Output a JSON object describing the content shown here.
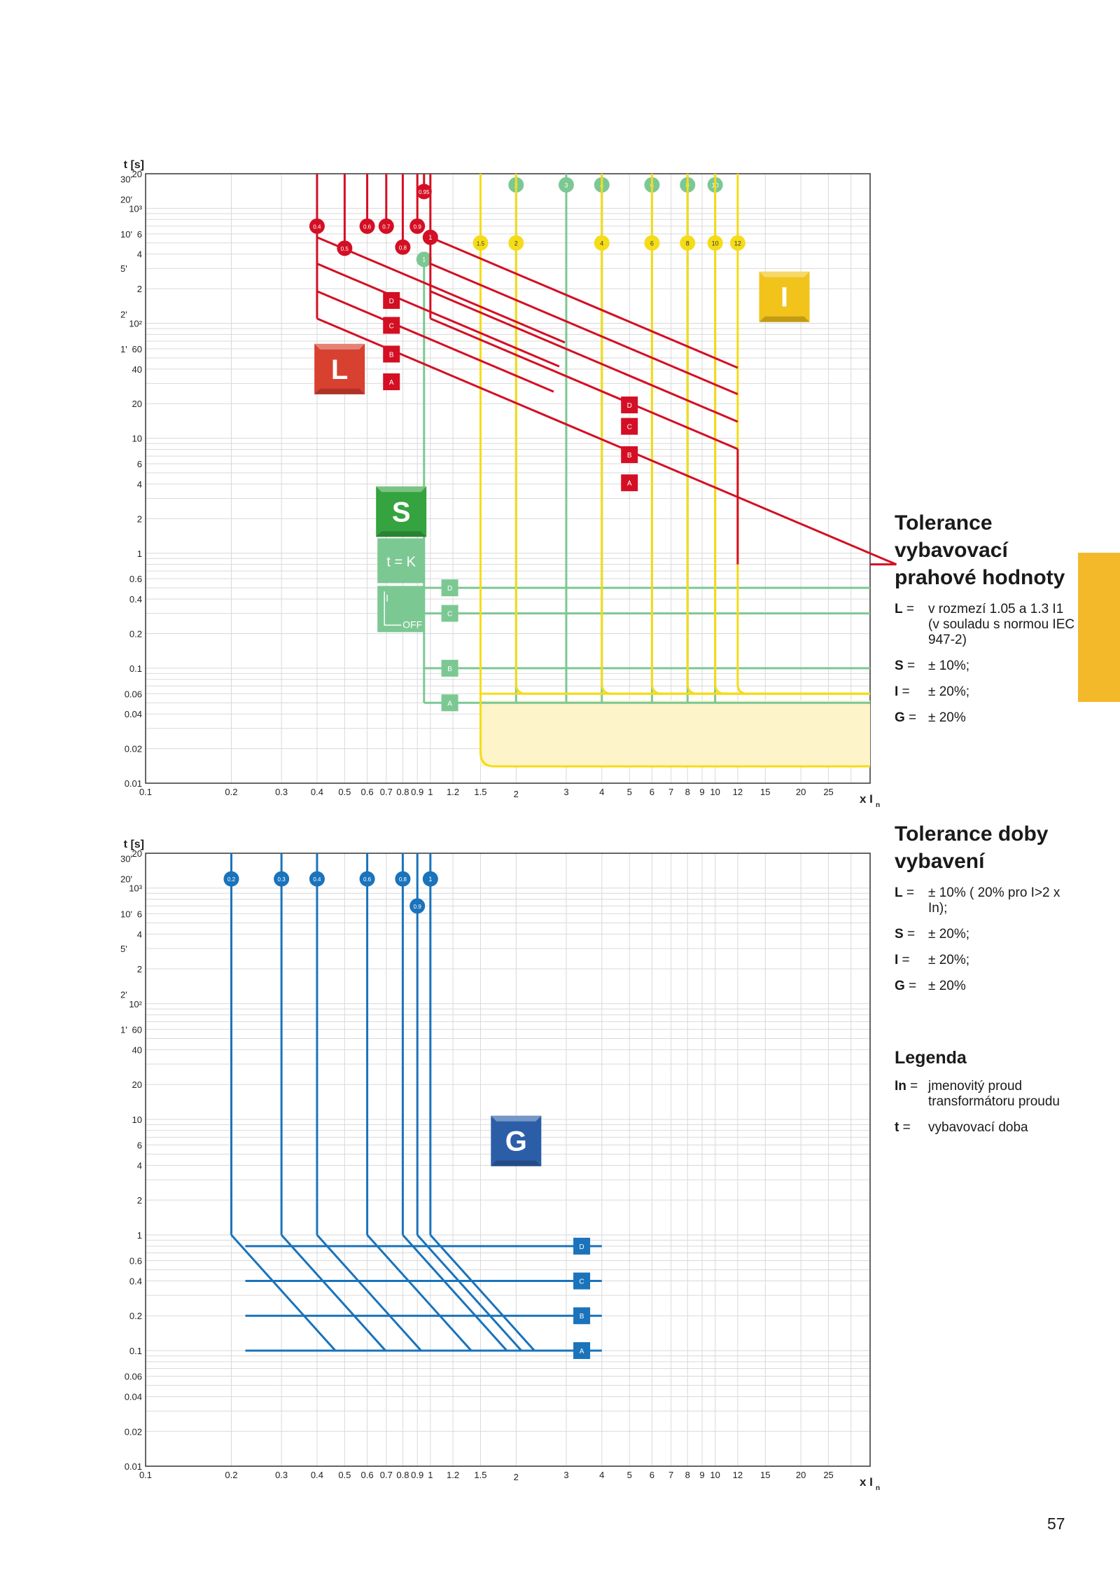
{
  "colors": {
    "L": "#d40f24",
    "S": "#7cc893",
    "I": "#f5dc18",
    "G": "#1a73bb",
    "I_zone": "#fdf4c9",
    "tab": "#f4b92b"
  },
  "page_number": "57",
  "side": {
    "prahove_title": "Tolerance vybavovací prahové hodnoty",
    "prahove": [
      {
        "key": "L",
        "eq": "=",
        "text": "v rozmezí 1.05 a 1.3 I1 (v souladu s normou IEC 947-2)"
      },
      {
        "key": "S",
        "eq": "=",
        "text": "± 10%;"
      },
      {
        "key": "I",
        "eq": "=",
        "text": "± 20%;"
      },
      {
        "key": "G",
        "eq": "=",
        "text": "± 20%"
      }
    ],
    "doby_title": "Tolerance doby vybavení",
    "doby": [
      {
        "key": "L",
        "eq": "=",
        "text": "± 10% ( 20% pro I>2 x In);"
      },
      {
        "key": "S",
        "eq": "=",
        "text": "± 20%;"
      },
      {
        "key": "I",
        "eq": "=",
        "text": "± 20%;"
      },
      {
        "key": "G",
        "eq": "=",
        "text": "± 20%"
      }
    ],
    "legend_title": "Legenda",
    "legend": [
      {
        "key": "In",
        "eq": "=",
        "text": "jmenovitý proud transformátoru proudu"
      },
      {
        "key": "t",
        "eq": "=",
        "text": "vybavovací doba"
      }
    ]
  },
  "chart_data": [
    {
      "type": "line",
      "x_scale": "log",
      "y_scale": "log",
      "xlim": [
        0.1,
        35
      ],
      "ylim": [
        0.01,
        2000
      ],
      "grid": true,
      "ylabel": "t [s]",
      "xlabel": "x I",
      "xlabel_sub": "n",
      "x_ticks": [
        {
          "v": 0.1,
          "t": "0.1"
        },
        {
          "v": 0.2,
          "t": "0.2"
        },
        {
          "v": 0.3,
          "t": "0.3"
        },
        {
          "v": 0.4,
          "t": "0.4"
        },
        {
          "v": 0.5,
          "t": "0.5"
        },
        {
          "v": 0.6,
          "t": "0.6"
        },
        {
          "v": 0.7,
          "t": "0.7"
        },
        {
          "v": 0.8,
          "t": "0.8"
        },
        {
          "v": 0.9,
          "t": "0.9"
        },
        {
          "v": 1,
          "t": "1"
        },
        {
          "v": 1.2,
          "t": "1.2"
        },
        {
          "v": 1.5,
          "t": "1.5"
        },
        {
          "v": 2,
          "t": "2"
        },
        {
          "v": 3,
          "t": "3"
        },
        {
          "v": 4,
          "t": "4"
        },
        {
          "v": 5,
          "t": "5"
        },
        {
          "v": 6,
          "t": "6"
        },
        {
          "v": 7,
          "t": "7"
        },
        {
          "v": 8,
          "t": "8"
        },
        {
          "v": 9,
          "t": "9"
        },
        {
          "v": 10,
          "t": "10"
        },
        {
          "v": 12,
          "t": "12"
        },
        {
          "v": 15,
          "t": "15"
        },
        {
          "v": 20,
          "t": "20"
        },
        {
          "v": 25,
          "t": "25"
        }
      ],
      "y_ticks": [
        {
          "v": 2000,
          "t": "20"
        },
        {
          "v": 1000,
          "t": "10³"
        },
        {
          "v": 600,
          "t": "6"
        },
        {
          "v": 400,
          "t": "4"
        },
        {
          "v": 200,
          "t": "2"
        },
        {
          "v": 100,
          "t": "10²"
        },
        {
          "v": 60,
          "t": "60"
        },
        {
          "v": 40,
          "t": "40"
        },
        {
          "v": 20,
          "t": "20"
        },
        {
          "v": 10,
          "t": "10"
        },
        {
          "v": 6,
          "t": "6"
        },
        {
          "v": 4,
          "t": "4"
        },
        {
          "v": 2,
          "t": "2"
        },
        {
          "v": 1,
          "t": "1"
        },
        {
          "v": 0.6,
          "t": "0.6"
        },
        {
          "v": 0.4,
          "t": "0.4"
        },
        {
          "v": 0.2,
          "t": "0.2"
        },
        {
          "v": 0.1,
          "t": "0.1"
        },
        {
          "v": 0.06,
          "t": "0.06"
        },
        {
          "v": 0.04,
          "t": "0.04"
        },
        {
          "v": 0.02,
          "t": "0.02"
        },
        {
          "v": 0.01,
          "t": "0.01"
        }
      ],
      "minute_labels": [
        {
          "v": 1800,
          "t": "30'"
        },
        {
          "v": 1200,
          "t": "20'"
        },
        {
          "v": 600,
          "t": "10'"
        },
        {
          "v": 300,
          "t": "5'"
        },
        {
          "v": 120,
          "t": "2'"
        },
        {
          "v": 60,
          "t": "1'"
        }
      ],
      "function_badges": [
        {
          "label": "L",
          "color": "#d8402f",
          "x": 0.48,
          "y": 40
        },
        {
          "label": "S",
          "color": "#35a33f",
          "x": 0.79,
          "y": 2.3
        },
        {
          "label": "I",
          "color": "#f2c31a",
          "x": 17.5,
          "y": 170
        }
      ],
      "S_option_labels": [
        "t = K",
        "I",
        "OFF"
      ],
      "L": {
        "thresholds": [
          {
            "label": "0.4",
            "x": 0.4,
            "y": 700
          },
          {
            "label": "0.5",
            "x": 0.5,
            "y": 450
          },
          {
            "label": "0.6",
            "x": 0.6,
            "y": 700
          },
          {
            "label": "0.7",
            "x": 0.7,
            "y": 700
          },
          {
            "label": "0.8",
            "x": 0.8,
            "y": 460
          },
          {
            "label": "0.9",
            "x": 0.9,
            "y": 700
          },
          {
            "label": "0.95",
            "x": 0.95,
            "y": 1400
          },
          {
            "label": "1",
            "x": 1,
            "y": 560
          }
        ],
        "curves": [
          {
            "name": "A",
            "start_y": 110,
            "label_x": 0.73,
            "label_x2": 5.0,
            "y_at_label": 31,
            "y_at_label2": 4.1
          },
          {
            "name": "B",
            "start_y": 190,
            "label_x": 0.73,
            "label_x2": 5.0,
            "y_at_label": 54,
            "y_at_label2": 7.2
          },
          {
            "name": "C",
            "start_y": 330,
            "label_x": 0.73,
            "label_x2": 5.0,
            "y_at_label": 96,
            "y_at_label2": 12.7
          },
          {
            "name": "D",
            "start_y": 560,
            "label_x": 0.73,
            "label_x2": 5.0,
            "y_at_label": 158,
            "y_at_label2": 19.5
          }
        ],
        "low_band_start_x": 0.4,
        "high_band_start_x": 1.0,
        "end_x": 12
      },
      "S": {
        "thresholds": [
          {
            "label": "1",
            "x": 0.95,
            "y": 360
          },
          {
            "label": "2",
            "x": 2,
            "y": 1600
          },
          {
            "label": "3",
            "x": 3,
            "y": 1600
          },
          {
            "label": "4",
            "x": 4,
            "y": 1600
          },
          {
            "label": "6",
            "x": 6,
            "y": 1600
          },
          {
            "label": "8",
            "x": 8,
            "y": 1600
          },
          {
            "label": "10",
            "x": 10,
            "y": 1600
          }
        ],
        "bands": [
          {
            "name": "D",
            "t": 0.5
          },
          {
            "name": "C",
            "t": 0.3
          },
          {
            "name": "B",
            "t": 0.1
          },
          {
            "name": "A",
            "t": 0.05
          }
        ]
      },
      "I": {
        "thresholds": [
          {
            "label": "1.5",
            "x": 1.5,
            "y": 500
          },
          {
            "label": "2",
            "x": 2,
            "y": 500
          },
          {
            "label": "4",
            "x": 4,
            "y": 500
          },
          {
            "label": "6",
            "x": 6,
            "y": 500
          },
          {
            "label": "8",
            "x": 8,
            "y": 500
          },
          {
            "label": "10",
            "x": 10,
            "y": 500
          },
          {
            "label": "12",
            "x": 12,
            "y": 500
          }
        ],
        "t_min": 0.06,
        "zone_bottom": 0.014
      }
    },
    {
      "type": "line",
      "x_scale": "log",
      "y_scale": "log",
      "xlim": [
        0.1,
        35
      ],
      "ylim": [
        0.01,
        2000
      ],
      "grid": true,
      "ylabel": "t [s]",
      "xlabel": "x I",
      "xlabel_sub": "n",
      "function_badges": [
        {
          "label": "G",
          "color": "#2c5ea8",
          "x": 2.0,
          "y": 6.5
        }
      ],
      "G": {
        "thresholds": [
          {
            "label": "0.2",
            "x": 0.2,
            "y": 1200
          },
          {
            "label": "0.3",
            "x": 0.3,
            "y": 1200
          },
          {
            "label": "0.4",
            "x": 0.4,
            "y": 1200
          },
          {
            "label": "0.6",
            "x": 0.6,
            "y": 1200
          },
          {
            "label": "0.8",
            "x": 0.8,
            "y": 1200
          },
          {
            "label": "0.9",
            "x": 0.9,
            "y": 700
          },
          {
            "label": "1",
            "x": 1,
            "y": 1200
          }
        ],
        "corner_t": 1,
        "bands": [
          {
            "name": "D",
            "t": 0.8
          },
          {
            "name": "C",
            "t": 0.4
          },
          {
            "name": "B",
            "t": 0.2
          },
          {
            "name": "A",
            "t": 0.1
          }
        ],
        "band_end_x": 4.0,
        "label_x": 3.4
      }
    }
  ]
}
